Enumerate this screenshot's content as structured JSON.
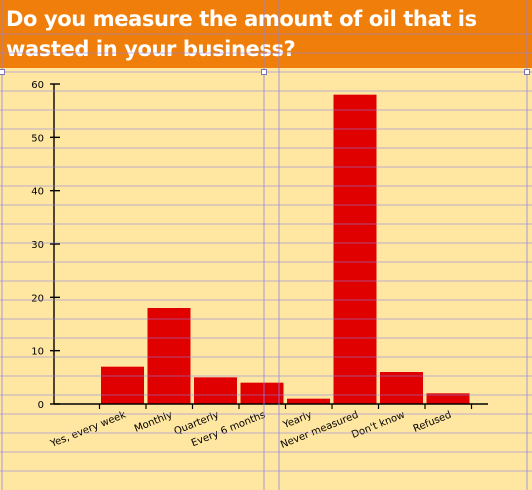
{
  "title": "Do you measure the amount of oil that is wasted in your business?",
  "colors": {
    "background": "#ffe6a1",
    "title_bar": "#f07e0a",
    "bar": "#e00000",
    "guides": "#8b82e6"
  },
  "chart_data": {
    "type": "bar",
    "title": "Do you measure the amount of oil that is wasted in your business?",
    "categories": [
      "Yes, every week",
      "Monthly",
      "Quarterly",
      "Every 6 months",
      "Yearly",
      "Never measured",
      "Don't know",
      "Refused"
    ],
    "values": [
      7,
      18,
      5,
      4,
      1,
      58,
      6,
      2
    ],
    "ylim": [
      0,
      60
    ],
    "yticks": [
      0,
      10,
      20,
      30,
      40,
      50,
      60
    ],
    "xlabel": "",
    "ylabel": "",
    "grid": false,
    "legend": "none"
  }
}
